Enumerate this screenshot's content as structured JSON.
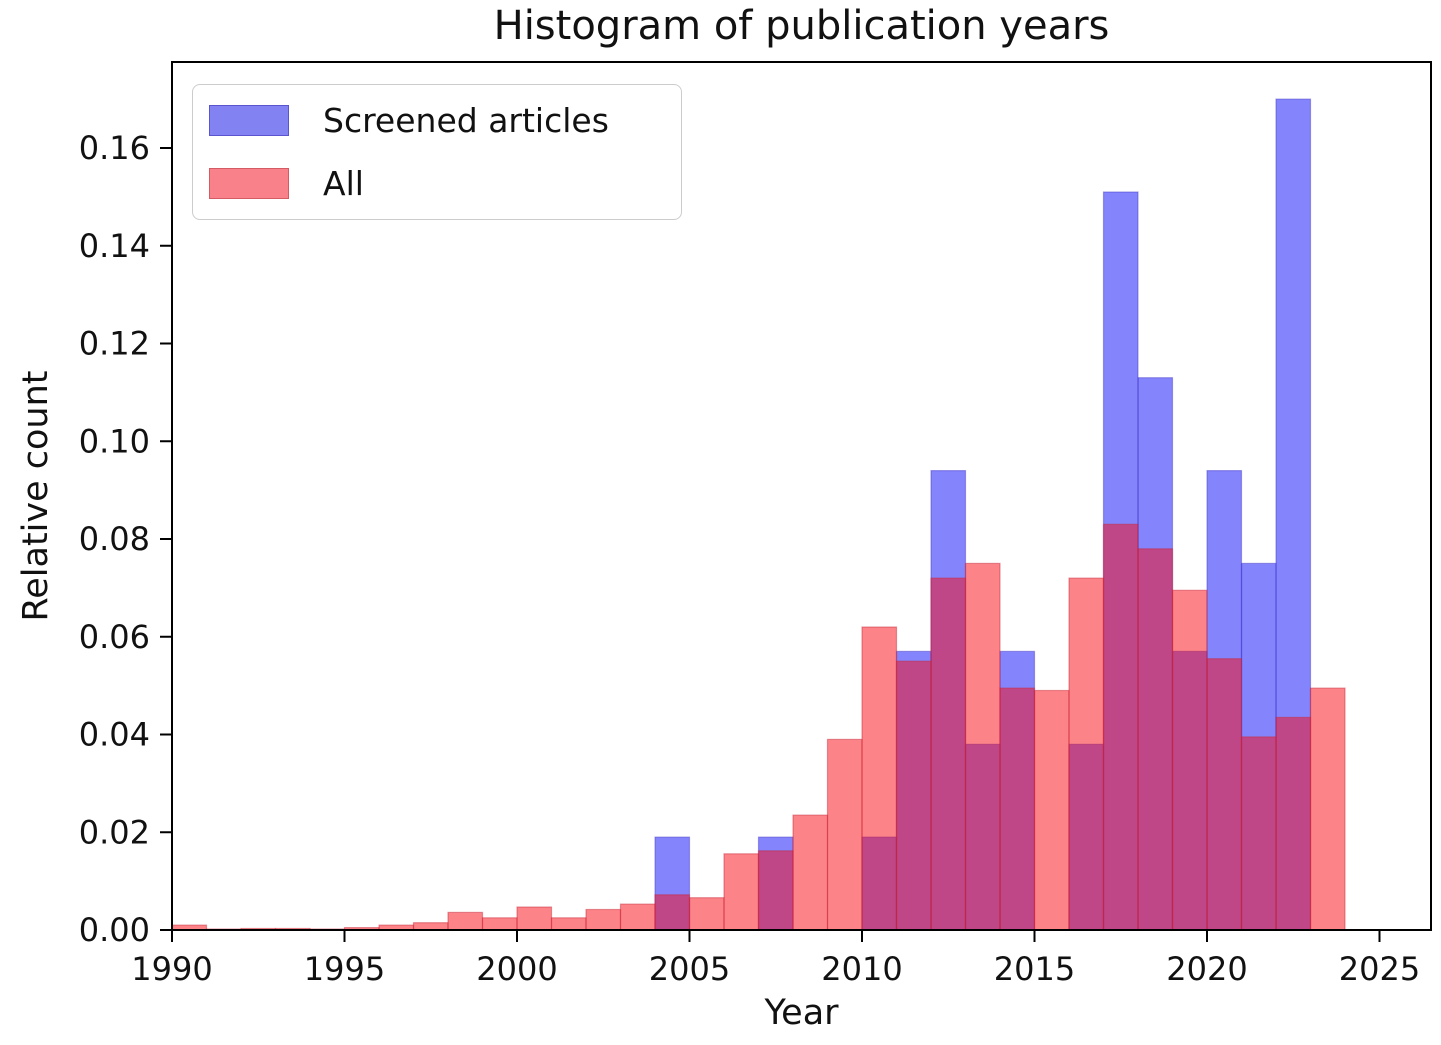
{
  "figure": {
    "title": "Histogram of publication years",
    "xlabel": "Year",
    "ylabel": "Relative count"
  },
  "legend": {
    "items": [
      {
        "label": "Screened articles",
        "color": "#8282f2",
        "edge": "#5a54cf"
      },
      {
        "label": "All",
        "color": "#f9828a",
        "edge": "#d45b64"
      }
    ]
  },
  "chart_data": {
    "type": "bar",
    "subtype": "overlaid-histogram",
    "title": "Histogram of publication years",
    "xlabel": "Year",
    "ylabel": "Relative count",
    "grid": false,
    "legend_position": "upper-left",
    "xlim": [
      1990,
      2026.5
    ],
    "ylim": [
      0,
      0.1776
    ],
    "x_ticks": [
      1990,
      1995,
      2000,
      2005,
      2010,
      2015,
      2020,
      2025
    ],
    "y_tick_labels": [
      "0.00",
      "0.02",
      "0.04",
      "0.06",
      "0.08",
      "0.10",
      "0.12",
      "0.14",
      "0.16"
    ],
    "bin_width_years": 1,
    "bin_start_years": [
      1990,
      1991,
      1992,
      1993,
      1994,
      1995,
      1996,
      1997,
      1998,
      1999,
      2000,
      2001,
      2002,
      2003,
      2004,
      2005,
      2006,
      2007,
      2008,
      2009,
      2010,
      2011,
      2012,
      2013,
      2014,
      2015,
      2016,
      2017,
      2018,
      2019,
      2020,
      2021,
      2022,
      2023
    ],
    "series": [
      {
        "name": "Screened articles",
        "fill": "rgba(10,10,250,0.5)",
        "edge": "rgba(70,60,200,0.45)",
        "values": [
          0,
          0,
          0,
          0,
          0,
          0,
          0,
          0,
          0,
          0,
          0,
          0,
          0,
          0,
          0.019,
          0,
          0,
          0.019,
          0,
          0,
          0.019,
          0.057,
          0.094,
          0.038,
          0.057,
          0,
          0.038,
          0.151,
          0.113,
          0.057,
          0.094,
          0.075,
          0.17,
          0
        ]
      },
      {
        "name": "All",
        "fill": "rgba(250,10,20,0.5)",
        "edge": "rgba(200,40,55,0.45)",
        "values": [
          0.001,
          0.0002,
          0.0003,
          0.0003,
          0.0002,
          0.0005,
          0.001,
          0.0015,
          0.0036,
          0.0025,
          0.0047,
          0.0025,
          0.0042,
          0.0053,
          0.0072,
          0.0066,
          0.0156,
          0.0162,
          0.0235,
          0.039,
          0.062,
          0.055,
          0.072,
          0.075,
          0.0495,
          0.049,
          0.072,
          0.083,
          0.078,
          0.0695,
          0.0555,
          0.0395,
          0.0435,
          0.0495
        ]
      }
    ]
  }
}
